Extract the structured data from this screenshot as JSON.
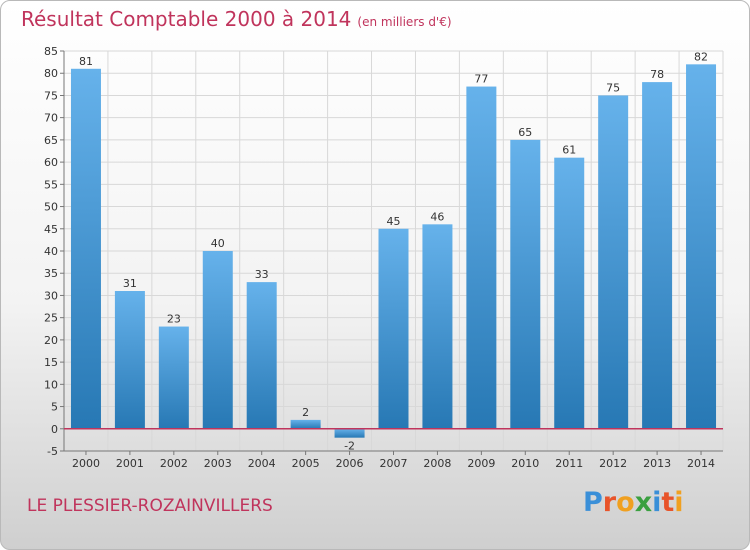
{
  "header": {
    "title": "Résultat Comptable 2000 à 2014",
    "subtitle": "(en milliers d'€)"
  },
  "footer": {
    "location": "LE PLESSIER-ROZAINVILLERS",
    "logo_text": "Proxiti"
  },
  "colors": {
    "title": "#c0345c",
    "bar_light": "#66b2eb",
    "bar_dark": "#2778b4",
    "axis": "#c0345c",
    "grid": "#d8d8d8"
  },
  "chart_data": {
    "type": "bar",
    "categories": [
      "2000",
      "2001",
      "2002",
      "2003",
      "2004",
      "2005",
      "2006",
      "2007",
      "2008",
      "2009",
      "2010",
      "2011",
      "2012",
      "2013",
      "2014"
    ],
    "values": [
      81,
      31,
      23,
      40,
      33,
      2,
      -2,
      45,
      46,
      77,
      65,
      61,
      75,
      78,
      82
    ],
    "data_labels": [
      "81",
      "31",
      "23",
      "40",
      "33",
      "2",
      "-2",
      "45",
      "46",
      "77",
      "65",
      "61",
      "75",
      "78",
      "82"
    ],
    "title": "Résultat Comptable 2000 à 2014",
    "ylim": [
      -5,
      85
    ],
    "yticks": [
      -5,
      0,
      5,
      10,
      15,
      20,
      25,
      30,
      35,
      40,
      45,
      50,
      55,
      60,
      65,
      70,
      75,
      80,
      85
    ],
    "grid": true,
    "legend": "none"
  }
}
